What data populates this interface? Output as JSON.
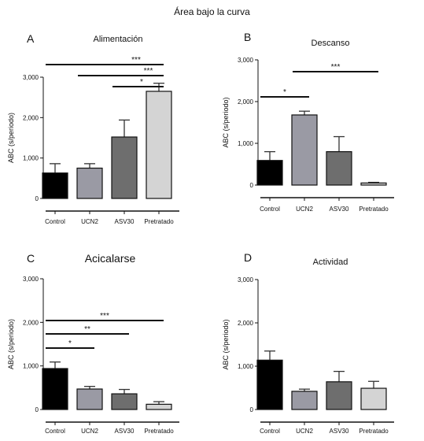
{
  "title": "Área bajo la curva",
  "chart_data": [
    {
      "type": "bar",
      "letter": "A",
      "title": "Alimentación",
      "ylabel": "ABC (s/periodo)",
      "categories": [
        "Control",
        "UCN2",
        "ASV30",
        "Pretratado"
      ],
      "values": [
        630,
        750,
        1520,
        2650
      ],
      "errors": [
        230,
        110,
        420,
        200
      ],
      "ylim": [
        0,
        3000
      ],
      "yticks": [
        "0",
        "1,000",
        "2,000",
        "3,000"
      ],
      "colors": [
        "#000000",
        "#9a9aa4",
        "#6e6e6e",
        "#d4d4d4"
      ],
      "significance": [
        {
          "from": 0,
          "to": 3,
          "label": "***"
        },
        {
          "from": 1,
          "to": 3,
          "label": "***"
        },
        {
          "from": 2,
          "to": 3,
          "label": "*"
        }
      ]
    },
    {
      "type": "bar",
      "letter": "B",
      "title": "Descanso",
      "ylabel": "ABC (s/periodo)",
      "categories": [
        "Control",
        "UCN2",
        "ASV30",
        "Pretratado"
      ],
      "values": [
        590,
        1680,
        800,
        50
      ],
      "errors": [
        210,
        90,
        360,
        15
      ],
      "ylim": [
        0,
        3000
      ],
      "yticks": [
        "0",
        "1,000",
        "2,000",
        "3,000"
      ],
      "colors": [
        "#000000",
        "#9a9aa4",
        "#6e6e6e",
        "#d4d4d4"
      ],
      "significance": [
        {
          "from": 0,
          "to": 1,
          "label": "*"
        },
        {
          "from": 1,
          "to": 3,
          "label": "***"
        }
      ]
    },
    {
      "type": "bar",
      "letter": "C",
      "title": "Acicalarse",
      "ylabel": "ABC (s/periodo)",
      "categories": [
        "Control",
        "UCN2",
        "ASV30",
        "Pretratado"
      ],
      "values": [
        940,
        470,
        360,
        120
      ],
      "errors": [
        150,
        60,
        100,
        60
      ],
      "ylim": [
        0,
        3000
      ],
      "yticks": [
        "0",
        "1,000",
        "2,000",
        "3,000"
      ],
      "colors": [
        "#000000",
        "#9a9aa4",
        "#6e6e6e",
        "#d4d4d4"
      ],
      "significance": [
        {
          "from": 0,
          "to": 3,
          "label": "***"
        },
        {
          "from": 0,
          "to": 2,
          "label": "**"
        },
        {
          "from": 0,
          "to": 1,
          "label": "*"
        }
      ]
    },
    {
      "type": "bar",
      "letter": "D",
      "title": "Actividad",
      "ylabel": "ABC (s/periodo)",
      "categories": [
        "Control",
        "UCN2",
        "ASV30",
        "Pretratado"
      ],
      "values": [
        1140,
        420,
        640,
        490
      ],
      "errors": [
        210,
        50,
        240,
        160
      ],
      "ylim": [
        0,
        3000
      ],
      "yticks": [
        "0",
        "1,000",
        "2,000",
        "3,000"
      ],
      "colors": [
        "#000000",
        "#9a9aa4",
        "#6e6e6e",
        "#d4d4d4"
      ],
      "significance": []
    }
  ]
}
